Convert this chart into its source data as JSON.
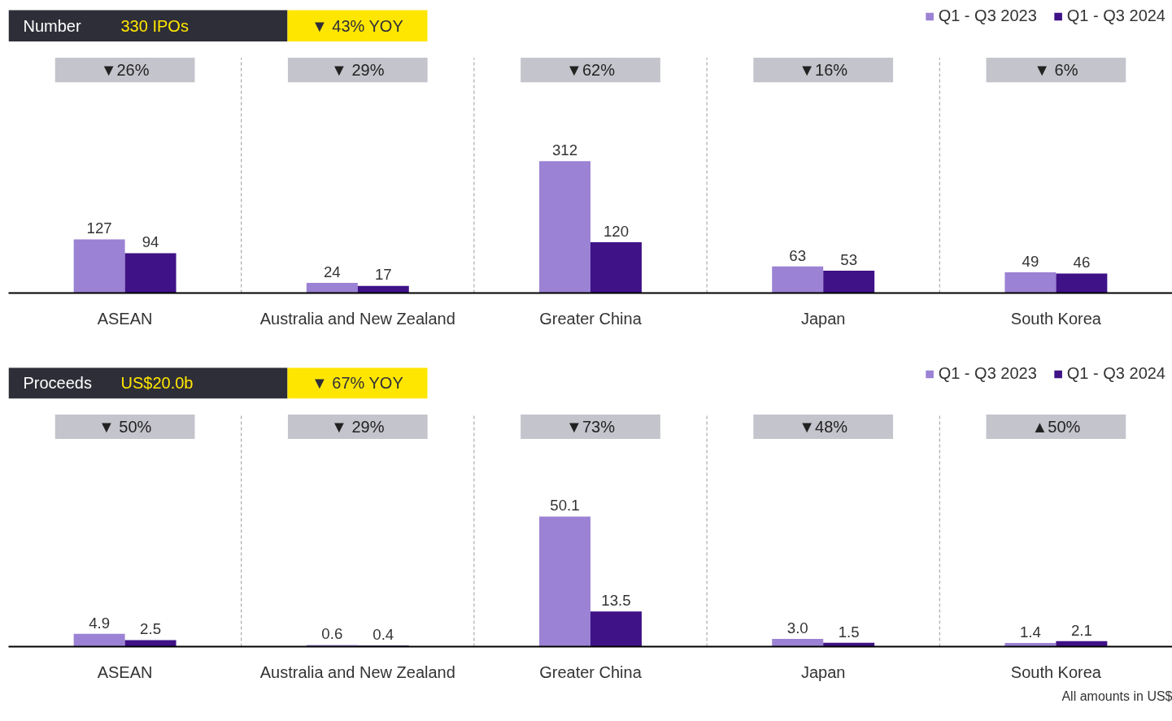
{
  "chart_data": [
    {
      "type": "bar",
      "title": "Number",
      "subtitle": "330 IPOs",
      "categories": [
        "ASEAN",
        "Australia and New Zealand",
        "Greater China",
        "Japan",
        "South Korea"
      ],
      "series": [
        {
          "name": "Q1 - Q3 2023",
          "color": "#9b82d4",
          "values": [
            127,
            24,
            312,
            63,
            49
          ]
        },
        {
          "name": "Q1 - Q3 2024",
          "color": "#3f1287",
          "values": [
            94,
            17,
            120,
            53,
            46
          ]
        }
      ],
      "annotations": [
        "▼ 43% YOY",
        "▼26%",
        "▼ 29%",
        "▼62%",
        "▼16%",
        "▼ 6%"
      ],
      "data_labels": true,
      "legend": "top right"
    },
    {
      "type": "bar",
      "title": "Proceeds",
      "subtitle": "US$20.0b",
      "categories": [
        "ASEAN",
        "Australia and New Zealand",
        "Greater China",
        "Japan",
        "South Korea"
      ],
      "series": [
        {
          "name": "Q1 - Q3 2023",
          "color": "#9b82d4",
          "values": [
            4.9,
            0.6,
            50.1,
            3.0,
            1.4
          ],
          "value_labels": [
            "4.9",
            "0.6",
            "50.1",
            "3.0",
            "1.4"
          ]
        },
        {
          "name": "Q1 - Q3 2024",
          "color": "#3f1287",
          "values": [
            2.5,
            0.4,
            13.5,
            1.5,
            2.1
          ],
          "value_labels": [
            "2.5",
            "0.4",
            "13.5",
            "1.5",
            "2.1"
          ]
        }
      ],
      "annotations": [
        "▼ 67% YOY",
        "▼ 50%",
        "▼ 29%",
        "▼73%",
        "▼48%",
        "▲50%",
        "All amounts in US$"
      ],
      "data_labels": true,
      "legend": "top right"
    }
  ]
}
